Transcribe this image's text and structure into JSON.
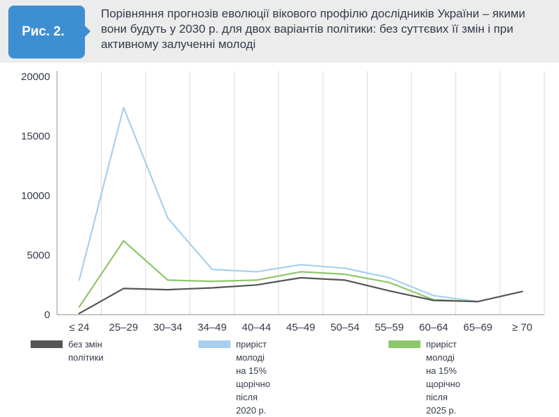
{
  "figure": {
    "label": "Рис. 2.",
    "title": "Порівняння прогнозів еволюції вікового профілю дослідників України – якими вони будуть у 2030 р. для двох варіантів політики: без суттєвих її змін і при активному залученні молоді"
  },
  "chart_data": {
    "type": "line",
    "title": "",
    "xlabel": "",
    "ylabel": "",
    "categories": [
      "≤ 24",
      "25–29",
      "30–34",
      "34–49",
      "40–44",
      "45–49",
      "50–54",
      "55–59",
      "60–64",
      "65–69",
      "≥ 70"
    ],
    "ylim": [
      0,
      20000
    ],
    "yticks": [
      0,
      5000,
      10000,
      15000,
      20000
    ],
    "grid": "vertical",
    "legend_position": "bottom",
    "series": [
      {
        "name": "без змін політики",
        "color": "#545454",
        "values": [
          100,
          2200,
          2100,
          2250,
          2500,
          3100,
          2900,
          2000,
          1200,
          1100,
          1950
        ]
      },
      {
        "name": "приріст молоді на 15% щорічно після 2020 р.",
        "color": "#a8d0ee",
        "values": [
          2900,
          17400,
          8100,
          3800,
          3600,
          4200,
          3900,
          3100,
          1600,
          1100,
          null
        ]
      },
      {
        "name": "приріст молоді на 15% щорічно після 2025 р.",
        "color": "#8cc86a",
        "values": [
          650,
          6200,
          2900,
          2800,
          2900,
          3600,
          3400,
          2700,
          1250,
          1100,
          null
        ]
      }
    ]
  },
  "legend": [
    {
      "label": "без змін політики"
    },
    {
      "label": "приріст молоді на 15%\nщорічно після 2020 р."
    },
    {
      "label": "приріст молоді на 15%\nщорічно після 2025 р."
    }
  ]
}
